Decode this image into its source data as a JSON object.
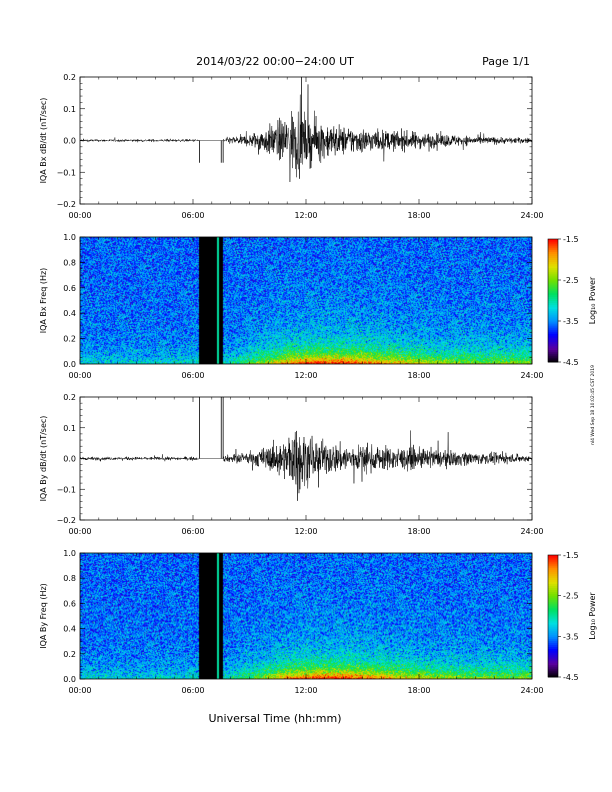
{
  "header": {
    "title": "2014/03/22  00:00−24:00 UT",
    "page": "Page 1/1"
  },
  "footer": {
    "xlabel": "Universal Time (hh:mm)",
    "side_stamp": "nl4 Wed Sep 18 10:02:45 CST 2019"
  },
  "colorbar": {
    "label": "Log₁₀ Power",
    "ticks": [
      "-1.5",
      "-2.5",
      "-3.5",
      "-4.5"
    ],
    "range": [
      -4.5,
      -1.5
    ],
    "colors": [
      "#000000",
      "#5a00a0",
      "#0000ff",
      "#0090ff",
      "#00e0e0",
      "#00e060",
      "#70e000",
      "#e0e000",
      "#ff9000",
      "#ff0000"
    ]
  },
  "chart_data": [
    {
      "type": "line",
      "id": "bx_ts",
      "ylabel": "IQA Bx dB/dt (nT/sec)",
      "xlim": [
        "00:00",
        "24:00"
      ],
      "ylim": [
        -0.2,
        0.2
      ],
      "x_ticks": [
        "00:00",
        "06:00",
        "12:00",
        "18:00",
        "24:00"
      ],
      "y_ticks": [
        "0.2",
        "0.1",
        "0.0",
        "−0.1",
        "−0.2"
      ],
      "color": "#000000",
      "data_gap_hours": [
        6.3,
        7.6
      ],
      "envelope": {
        "hour": [
          0,
          6.3,
          7.6,
          9,
          10,
          11,
          11.5,
          12,
          13,
          14,
          16,
          18,
          21,
          24
        ],
        "amplitude": [
          0.006,
          0.006,
          0.012,
          0.03,
          0.07,
          0.12,
          0.18,
          0.12,
          0.09,
          0.07,
          0.05,
          0.04,
          0.02,
          0.012
        ]
      }
    },
    {
      "type": "heatmap",
      "id": "bx_spec",
      "ylabel": "IQA Bx Freq (Hz)",
      "xlim": [
        "00:00",
        "24:00"
      ],
      "ylim": [
        0,
        1.0
      ],
      "x_ticks": [
        "00:00",
        "06:00",
        "12:00",
        "18:00",
        "24:00"
      ],
      "y_ticks": [
        "1.0",
        "0.8",
        "0.6",
        "0.4",
        "0.2",
        "0.0"
      ],
      "zlabel": "Log₁₀ Power",
      "zlim": [
        -4.5,
        -1.5
      ],
      "data_gap_hours": [
        6.3,
        7.6
      ],
      "background_log_power": -3.6,
      "low_freq_enhancement": {
        "peak_hour": 13.5,
        "width_hours": 4,
        "peak_log_power": -2.6,
        "freq_scale_hz": 0.08
      }
    },
    {
      "type": "line",
      "id": "by_ts",
      "ylabel": "IQA By dB/dt (nT/sec)",
      "xlim": [
        "00:00",
        "24:00"
      ],
      "ylim": [
        -0.2,
        0.2
      ],
      "x_ticks": [
        "00:00",
        "06:00",
        "12:00",
        "18:00",
        "24:00"
      ],
      "y_ticks": [
        "0.2",
        "0.1",
        "0.0",
        "−0.1",
        "−0.2"
      ],
      "color": "#000000",
      "data_gap_hours": [
        6.3,
        7.6
      ],
      "envelope": {
        "hour": [
          0,
          6.3,
          7.6,
          9,
          10,
          11,
          11.5,
          12,
          13,
          14,
          16,
          18,
          21,
          24
        ],
        "amplitude": [
          0.008,
          0.008,
          0.015,
          0.03,
          0.06,
          0.1,
          0.18,
          0.12,
          0.08,
          0.07,
          0.06,
          0.05,
          0.03,
          0.015
        ]
      }
    },
    {
      "type": "heatmap",
      "id": "by_spec",
      "ylabel": "IQA By Freq (Hz)",
      "xlim": [
        "00:00",
        "24:00"
      ],
      "ylim": [
        0,
        1.0
      ],
      "x_ticks": [
        "00:00",
        "06:00",
        "12:00",
        "18:00",
        "24:00"
      ],
      "y_ticks": [
        "1.0",
        "0.8",
        "0.6",
        "0.4",
        "0.2",
        "0.0"
      ],
      "zlabel": "Log₁₀ Power",
      "zlim": [
        -4.5,
        -1.5
      ],
      "data_gap_hours": [
        6.3,
        7.6
      ],
      "background_log_power": -3.6,
      "low_freq_enhancement": {
        "peak_hour": 13.5,
        "width_hours": 4,
        "peak_log_power": -2.7,
        "freq_scale_hz": 0.08
      }
    }
  ]
}
